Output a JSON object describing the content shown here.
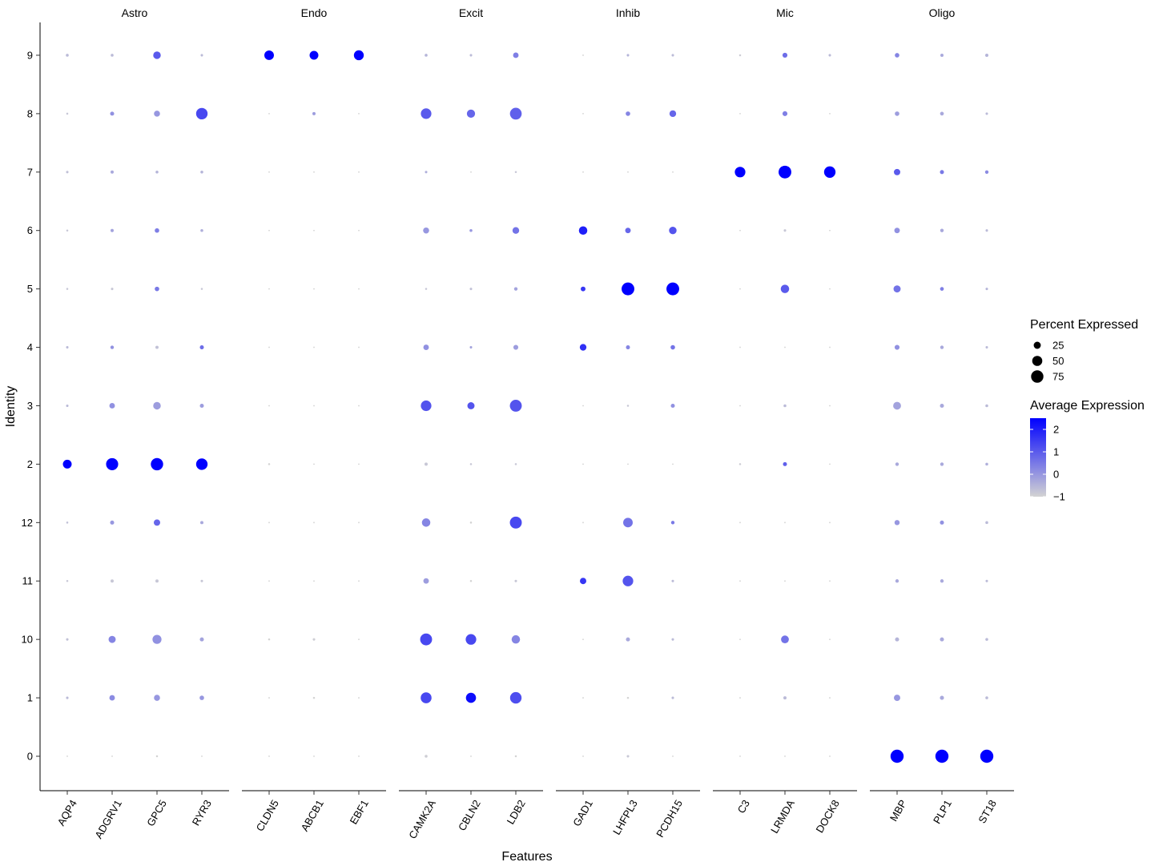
{
  "chart_data": {
    "type": "dotplot",
    "xlabel": "Features",
    "ylabel": "Identity",
    "identities": [
      "0",
      "1",
      "10",
      "11",
      "12",
      "2",
      "3",
      "4",
      "5",
      "6",
      "7",
      "8",
      "9"
    ],
    "panels": [
      {
        "name": "Astro",
        "features": [
          "AQP4",
          "ADGRV1",
          "GPC5",
          "RYR3"
        ]
      },
      {
        "name": "Endo",
        "features": [
          "CLDN5",
          "ABCB1",
          "EBF1"
        ]
      },
      {
        "name": "Excit",
        "features": [
          "CAMK2A",
          "CBLN2",
          "LDB2"
        ]
      },
      {
        "name": "Inhib",
        "features": [
          "GAD1",
          "LHFPL3",
          "PCDH15"
        ]
      },
      {
        "name": "Mic",
        "features": [
          "C3",
          "LRMDA",
          "DOCK8"
        ]
      },
      {
        "name": "Oligo",
        "features": [
          "MBP",
          "PLP1",
          "ST18"
        ]
      }
    ],
    "features": [
      "AQP4",
      "ADGRV1",
      "GPC5",
      "RYR3",
      "CLDN5",
      "ABCB1",
      "EBF1",
      "CAMK2A",
      "CBLN2",
      "LDB2",
      "GAD1",
      "LHFPL3",
      "PCDH15",
      "C3",
      "LRMDA",
      "DOCK8",
      "MBP",
      "PLP1",
      "ST18"
    ],
    "percent_expressed": {
      "0": [
        1,
        1,
        2,
        1,
        1,
        1,
        1,
        4,
        1,
        2,
        1,
        3,
        1,
        1,
        1,
        1,
        85,
        85,
        85
      ],
      "1": [
        3,
        15,
        18,
        10,
        1,
        2,
        1,
        58,
        50,
        65,
        1,
        2,
        3,
        1,
        5,
        1,
        20,
        8,
        4
      ],
      "10": [
        3,
        25,
        40,
        8,
        2,
        3,
        1,
        70,
        55,
        35,
        1,
        8,
        3,
        1,
        30,
        1,
        8,
        8,
        4
      ],
      "11": [
        2,
        5,
        5,
        3,
        1,
        1,
        1,
        15,
        2,
        3,
        20,
        55,
        3,
        1,
        1,
        1,
        6,
        6,
        3
      ],
      "12": [
        2,
        8,
        20,
        5,
        1,
        1,
        1,
        35,
        2,
        70,
        1,
        45,
        6,
        1,
        1,
        1,
        13,
        8,
        4
      ],
      "2": [
        38,
        72,
        75,
        65,
        2,
        1,
        1,
        5,
        2,
        2,
        1,
        1,
        1,
        2,
        8,
        1,
        6,
        6,
        4
      ],
      "3": [
        3,
        15,
        28,
        8,
        1,
        1,
        1,
        55,
        25,
        70,
        1,
        2,
        8,
        1,
        4,
        1,
        30,
        8,
        4
      ],
      "4": [
        3,
        6,
        5,
        8,
        1,
        1,
        1,
        15,
        3,
        12,
        22,
        8,
        10,
        1,
        1,
        1,
        12,
        6,
        3
      ],
      "5": [
        2,
        3,
        10,
        2,
        1,
        1,
        1,
        2,
        3,
        6,
        11,
        80,
        80,
        1,
        35,
        1,
        25,
        7,
        3
      ],
      "6": [
        2,
        5,
        10,
        4,
        1,
        1,
        1,
        18,
        4,
        22,
        35,
        15,
        28,
        1,
        3,
        1,
        15,
        6,
        3
      ],
      "7": [
        3,
        5,
        4,
        4,
        1,
        1,
        1,
        3,
        1,
        2,
        1,
        1,
        1,
        55,
        80,
        65,
        20,
        8,
        6
      ],
      "8": [
        2,
        8,
        18,
        65,
        1,
        5,
        1,
        55,
        33,
        68,
        1,
        10,
        22,
        1,
        12,
        1,
        10,
        7,
        3
      ],
      "9": [
        4,
        4,
        28,
        3,
        45,
        38,
        48,
        4,
        3,
        15,
        1,
        3,
        3,
        2,
        12,
        3,
        10,
        5,
        5
      ]
    },
    "average_expression": {
      "0": [
        -1,
        -1,
        -1,
        -1,
        -1,
        -1,
        -1,
        -0.9,
        -1,
        -1,
        -1,
        -0.8,
        -1,
        -1,
        -1,
        -1,
        2.5,
        2.5,
        2.5
      ],
      "1": [
        -0.6,
        0.2,
        0.0,
        0.0,
        -1,
        -1,
        -1,
        1.3,
        2.3,
        1.2,
        -1,
        -1,
        -0.6,
        -1,
        -0.6,
        -1,
        0.0,
        -0.3,
        -0.6
      ],
      "10": [
        -0.7,
        0.3,
        0.1,
        -0.2,
        -1,
        -0.9,
        -1,
        1.3,
        1.3,
        0.3,
        -1,
        -0.3,
        -0.6,
        -1,
        0.6,
        -1,
        -0.5,
        -0.3,
        -0.6
      ],
      "11": [
        -0.8,
        -0.8,
        -0.8,
        -0.8,
        -1,
        -1,
        -1,
        -0.1,
        -1,
        -0.8,
        1.6,
        1.1,
        -0.6,
        -1,
        -1,
        -1,
        -0.3,
        -0.3,
        -0.6
      ],
      "12": [
        -0.7,
        0.0,
        0.8,
        -0.3,
        -1,
        -1,
        -1,
        0.3,
        -1,
        1.3,
        -1,
        0.6,
        0.5,
        -1,
        -1,
        -1,
        0.0,
        0.1,
        -0.6
      ],
      "2": [
        2.5,
        2.5,
        2.5,
        2.5,
        -1,
        -1,
        -1,
        -0.8,
        -0.8,
        -0.8,
        -1,
        -1,
        -1,
        -0.9,
        0.9,
        -1,
        -0.3,
        -0.3,
        -0.4
      ],
      "3": [
        -0.6,
        0.1,
        -0.1,
        -0.1,
        -1,
        -1,
        -1,
        1.1,
        1.1,
        1.1,
        -1,
        -0.8,
        0.1,
        -1,
        -0.6,
        -1,
        -0.2,
        -0.3,
        -0.6
      ],
      "4": [
        -0.6,
        0.1,
        -0.7,
        0.7,
        -1,
        -1,
        -1,
        0.1,
        -0.2,
        -0.1,
        1.7,
        0.3,
        0.6,
        -1,
        -1,
        -1,
        0.1,
        -0.3,
        -0.6
      ],
      "5": [
        -0.8,
        -0.8,
        0.5,
        -0.8,
        -1,
        -1,
        -1,
        -0.8,
        -0.7,
        -0.2,
        1.6,
        2.5,
        2.5,
        -1,
        1.0,
        -1,
        0.6,
        0.4,
        -0.5
      ],
      "6": [
        -0.8,
        -0.2,
        0.4,
        -0.4,
        -1,
        -1,
        -1,
        0.0,
        0.0,
        0.6,
        2.0,
        0.8,
        1.1,
        -1,
        -0.8,
        -1,
        0.1,
        -0.3,
        -0.6
      ],
      "7": [
        -0.7,
        -0.3,
        -0.5,
        -0.5,
        -1,
        -1,
        -1,
        -0.4,
        -1,
        -0.8,
        -1,
        -1,
        -1,
        2.5,
        2.5,
        2.5,
        1.0,
        0.5,
        0.2
      ],
      "8": [
        -0.8,
        0.1,
        0.0,
        1.3,
        -1,
        -0.1,
        -1,
        1.0,
        0.8,
        0.9,
        -1,
        0.3,
        0.8,
        -1,
        0.4,
        -1,
        -0.1,
        -0.3,
        -0.6
      ],
      "9": [
        -0.6,
        -0.6,
        1.0,
        -0.6,
        2.5,
        2.5,
        2.5,
        -0.5,
        -0.6,
        0.4,
        -1,
        -0.5,
        -0.6,
        -0.9,
        0.7,
        -0.6,
        0.3,
        -0.3,
        -0.5
      ]
    },
    "legend": {
      "size_title": "Percent Expressed",
      "size_values": [
        25,
        50,
        75
      ],
      "size_labels": [
        "25",
        "50",
        "75"
      ],
      "color_title": "Average Expression",
      "color_ticks": [
        2,
        1,
        0,
        -1
      ],
      "color_tick_labels": [
        "2",
        "1",
        "0",
        "−1"
      ],
      "color_low": "#d3d3d3",
      "color_high": "#0000ff",
      "color_range": [
        -1,
        2.5
      ],
      "placement": "right"
    },
    "grid": false
  }
}
